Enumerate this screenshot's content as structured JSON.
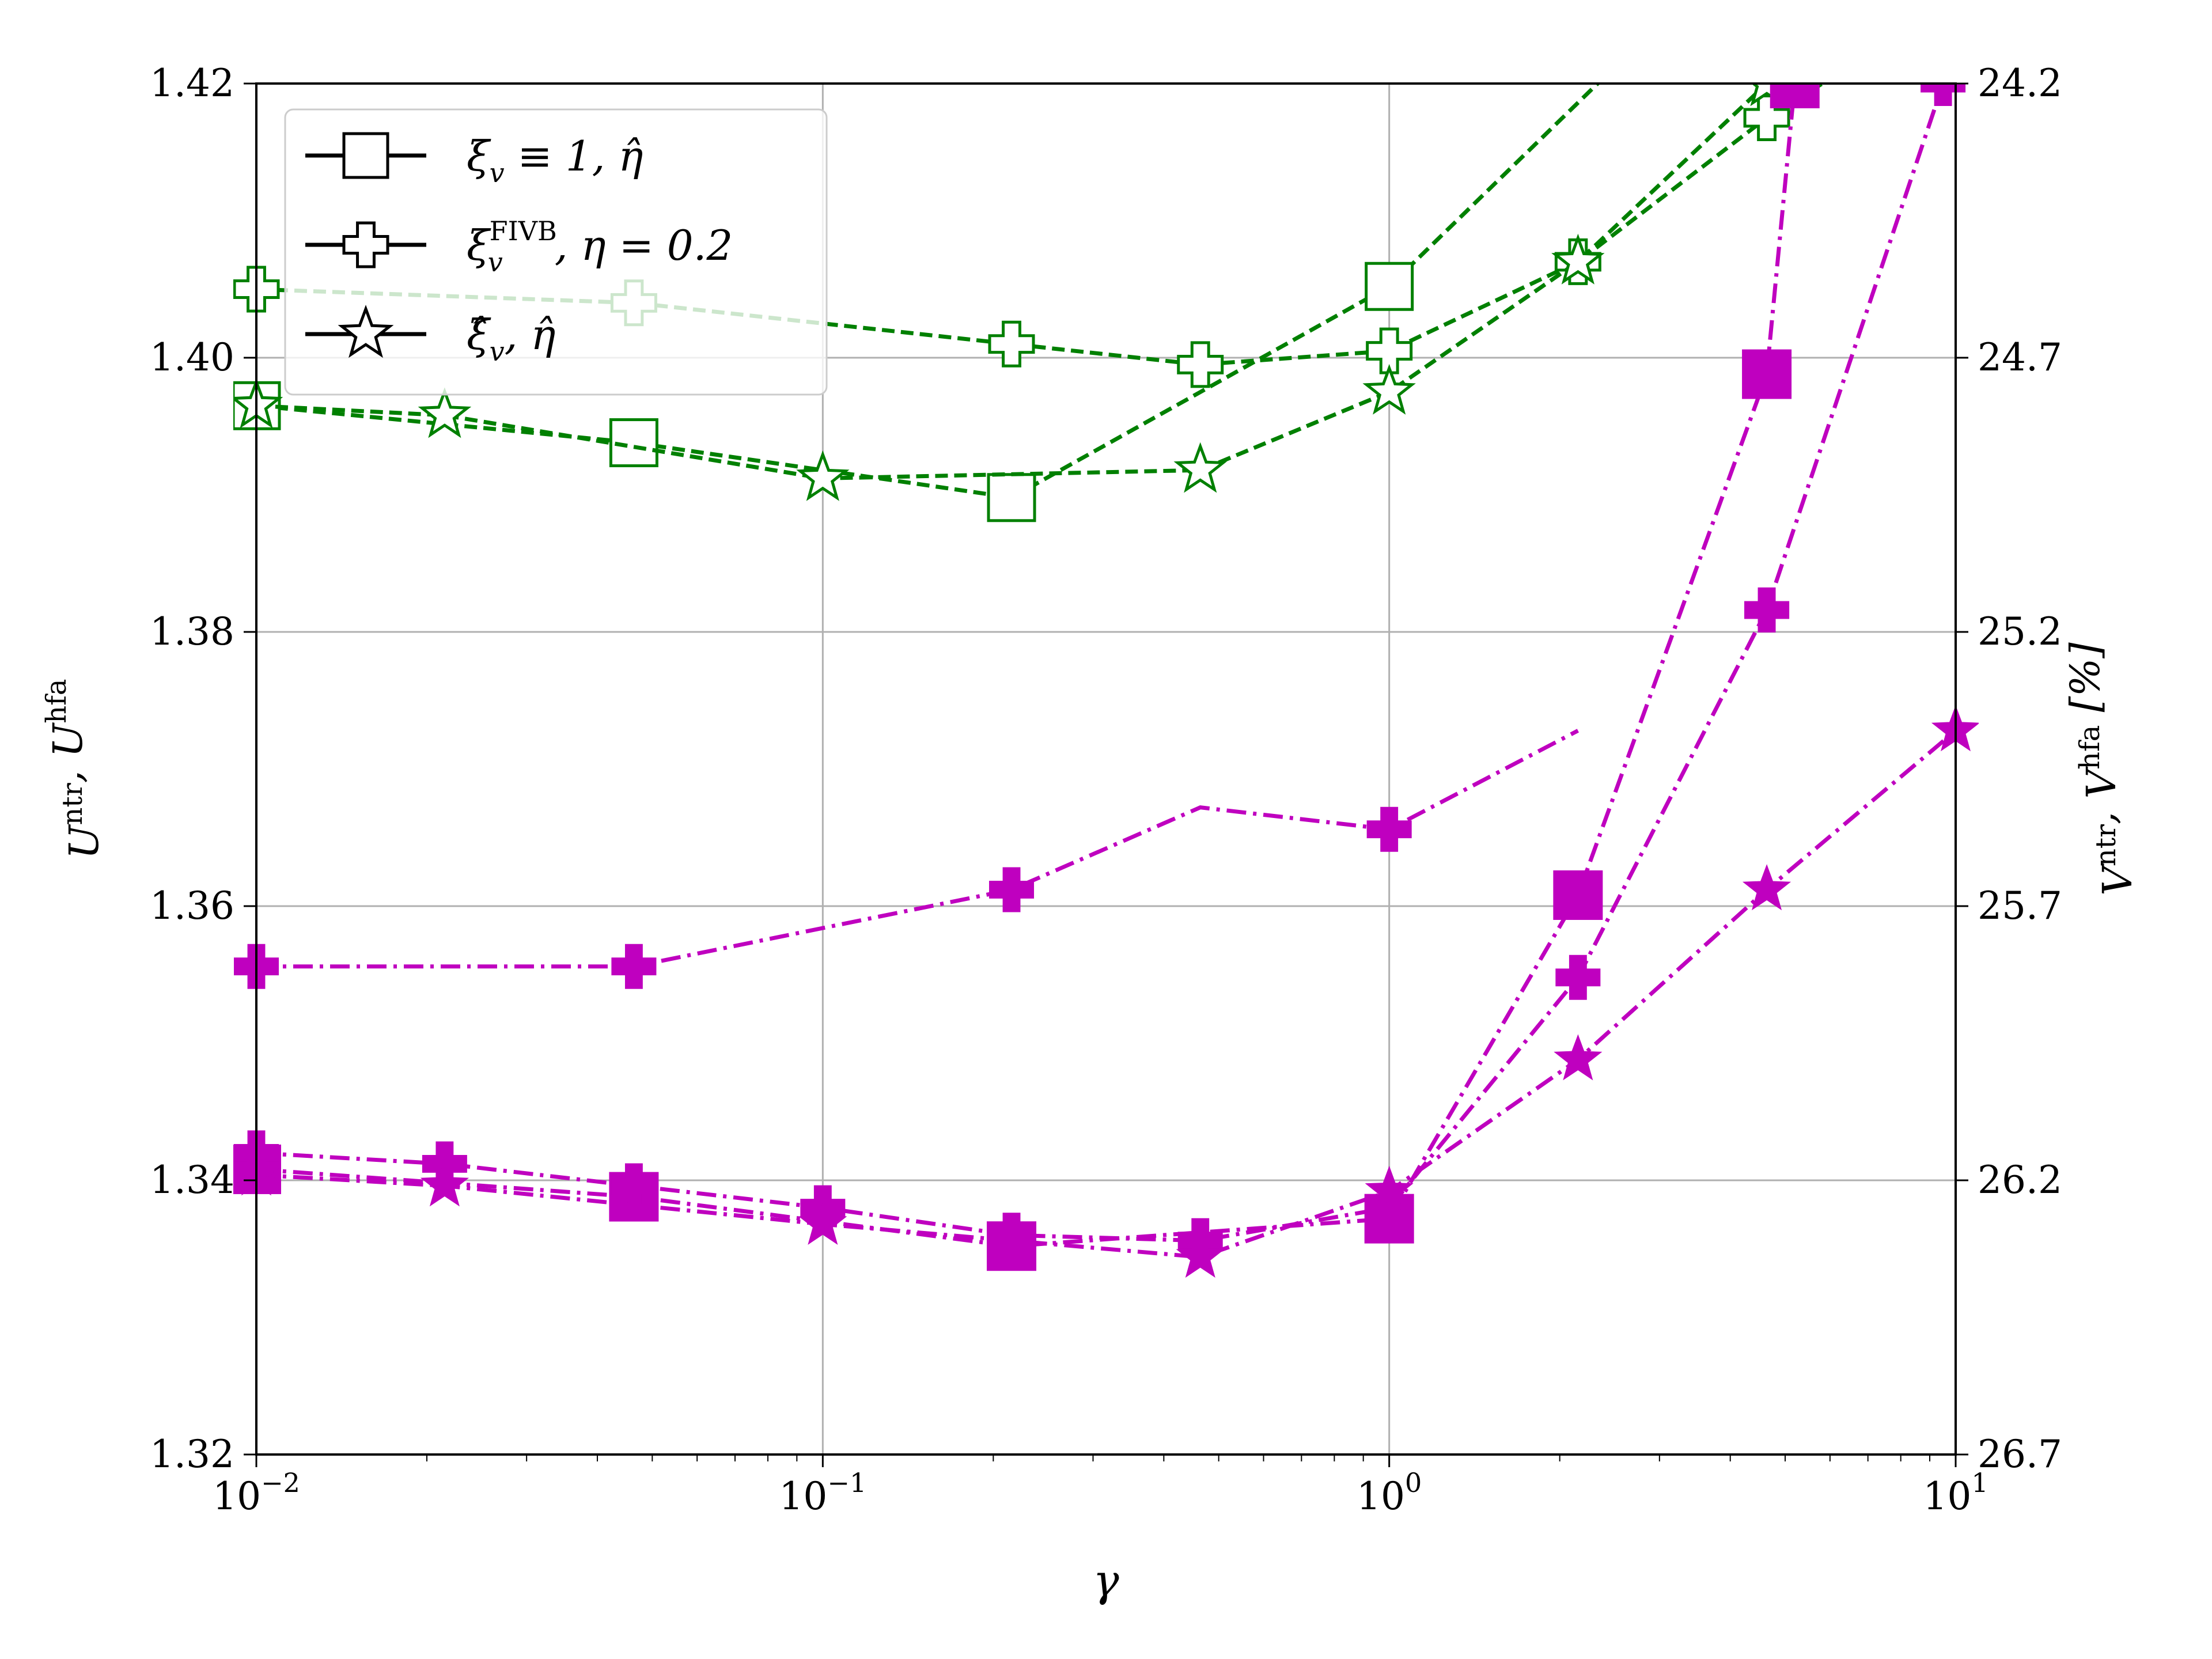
{
  "chart_data": {
    "type": "line",
    "xscale": "log",
    "xlim": [
      0.01,
      10
    ],
    "xticks": [
      {
        "value": 0.01,
        "base": "10",
        "exp": "−2"
      },
      {
        "value": 0.1,
        "base": "10",
        "exp": "−1"
      },
      {
        "value": 1,
        "base": "10",
        "exp": "0"
      },
      {
        "value": 10,
        "base": "10",
        "exp": "1"
      }
    ],
    "xlabel": "γ",
    "ylim_left": [
      1.32,
      1.42
    ],
    "yticks_left": [
      "1.32",
      "1.34",
      "1.36",
      "1.38",
      "1.40",
      "1.42"
    ],
    "ylabel_left": "U^ntr, U^hfa",
    "ylim_right": [
      26.7,
      24.2
    ],
    "yticks_right": [
      "24.2",
      "24.7",
      "25.2",
      "25.7",
      "26.2",
      "26.7"
    ],
    "ylabel_right": "V^ntr, V^hfa [%]",
    "grid": true,
    "legend_position": "top-left",
    "legend": [
      {
        "marker": "square",
        "label_main": "ξ",
        "label_sub": "v",
        "label_rest": " ≡ 1, η̂"
      },
      {
        "marker": "plus",
        "label_main": "ξ",
        "label_sub": "v",
        "label_sup": "FIVB",
        "label_rest": ", η = 0.2"
      },
      {
        "marker": "star",
        "label_main": "ξ̂",
        "label_sub": "v",
        "label_rest": ", η̂"
      }
    ],
    "colors": {
      "left_axis_series": "#008000",
      "right_axis_series": "#bf00bf"
    },
    "series": [
      {
        "axis": "left",
        "marker": "square",
        "line": "dashed",
        "x": [
          0.01,
          0.0464,
          0.2154,
          1.0,
          4.64
        ],
        "y": [
          1.3965,
          1.3938,
          1.3898,
          1.4052,
          1.432
        ]
      },
      {
        "axis": "left",
        "marker": "plus",
        "line": "dashed",
        "x": [
          0.01,
          0.0464,
          0.2154,
          0.464,
          1.0,
          2.154,
          4.64,
          10
        ],
        "y": [
          1.405,
          1.404,
          1.401,
          1.3995,
          1.4005,
          1.407,
          1.4175,
          1.426
        ]
      },
      {
        "axis": "left",
        "marker": "star",
        "line": "dashed",
        "x": [
          0.01,
          0.0215,
          0.1,
          0.464,
          1.0,
          2.154,
          4.64
        ],
        "y": [
          1.3965,
          1.3958,
          1.3912,
          1.3918,
          1.3975,
          1.407,
          1.42
        ]
      },
      {
        "axis": "right",
        "marker": "square",
        "line": "dashdot",
        "x": [
          0.01,
          0.0464,
          0.2154,
          1.0,
          2.154,
          4.64,
          5.2
        ],
        "y": [
          26.18,
          26.23,
          26.32,
          26.27,
          25.68,
          24.73,
          24.2
        ]
      },
      {
        "axis": "right",
        "marker": "plus",
        "line": "dashdot",
        "x": [
          0.01,
          0.0215,
          0.0464,
          0.1,
          0.2154,
          0.464,
          1.0,
          2.154,
          4.64,
          9.5
        ],
        "y": [
          26.15,
          26.17,
          26.21,
          26.25,
          26.3,
          26.31,
          26.25,
          25.83,
          25.16,
          24.2
        ]
      },
      {
        "axis": "right",
        "marker": "star",
        "line": "dashdot",
        "x": [
          0.01,
          0.0215,
          0.1,
          0.464,
          1.0,
          2.154,
          4.64,
          10
        ],
        "y": [
          26.19,
          26.21,
          26.28,
          26.34,
          26.22,
          25.98,
          25.67,
          25.38
        ]
      },
      {
        "axis": "right",
        "marker": "plus-only",
        "line": "dashdot",
        "x": [
          0.01,
          0.0464,
          0.2154,
          0.464,
          1.0,
          2.154
        ],
        "y": [
          25.81,
          25.81,
          25.67,
          25.52,
          25.56,
          25.38
        ]
      }
    ]
  }
}
